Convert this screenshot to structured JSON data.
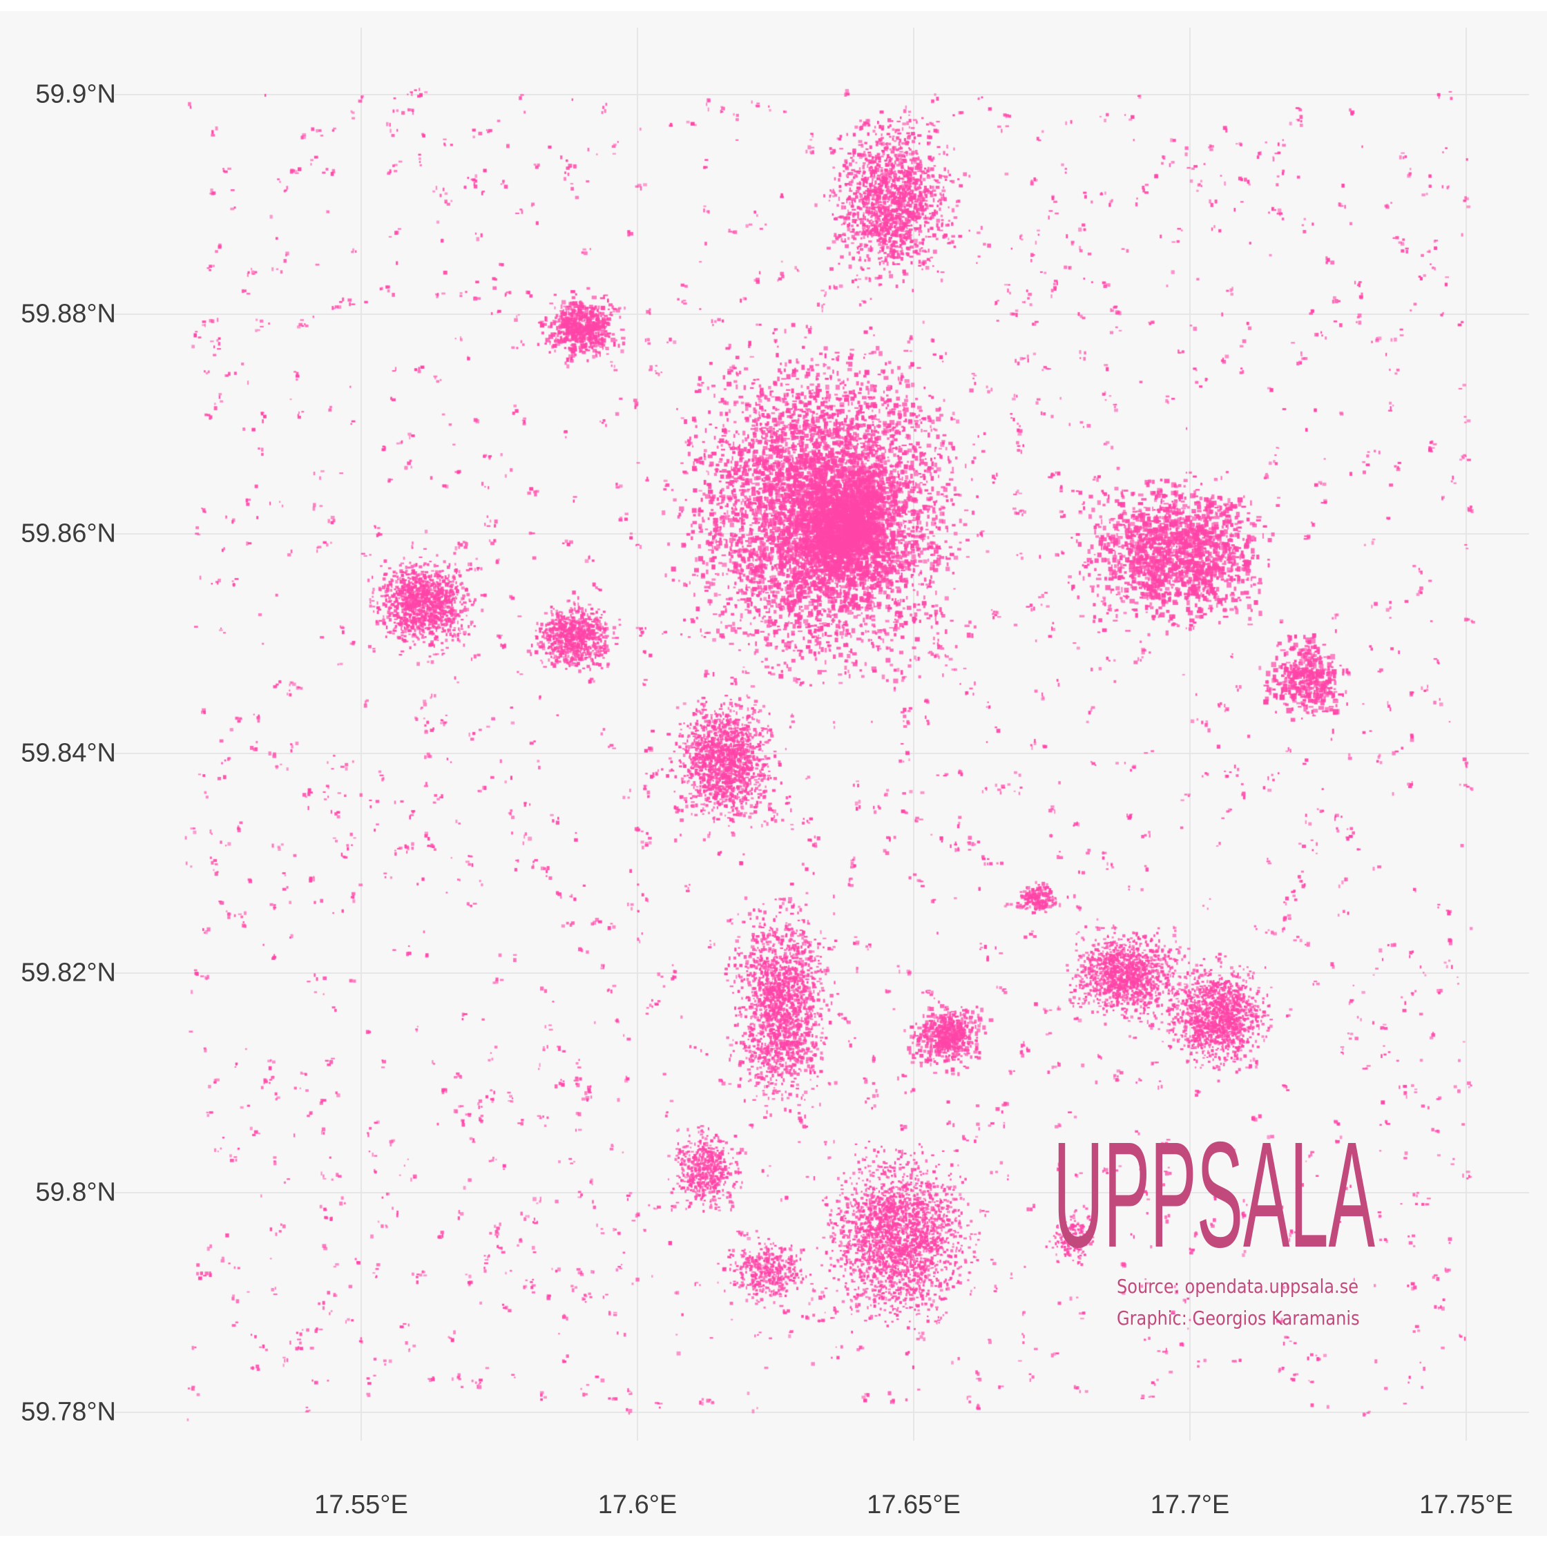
{
  "map": {
    "title": "UPPSALA",
    "source": "Source: opendata.uppsala.se",
    "credit": "Graphic: Georgios Karamanis",
    "colors": {
      "buildings": "#ff45a8",
      "title": "#c2497c",
      "background": "#f7f7f7",
      "grid": "#e6e6e6",
      "axis_text": "#3b3b3b"
    },
    "lon_range": [
      17.512,
      17.768
    ],
    "lat_range": [
      59.774,
      59.906
    ],
    "y_ticks": [
      "59.9°N",
      "59.88°N",
      "59.86°N",
      "59.84°N",
      "59.82°N",
      "59.8°N",
      "59.78°N"
    ],
    "y_tick_values": [
      59.9,
      59.88,
      59.86,
      59.84,
      59.82,
      59.8,
      59.78
    ],
    "x_ticks": [
      "17.55°E",
      "17.6°E",
      "17.65°E",
      "17.7°E",
      "17.75°E"
    ],
    "x_tick_values": [
      17.55,
      17.6,
      17.65,
      17.7,
      17.75
    ]
  }
}
